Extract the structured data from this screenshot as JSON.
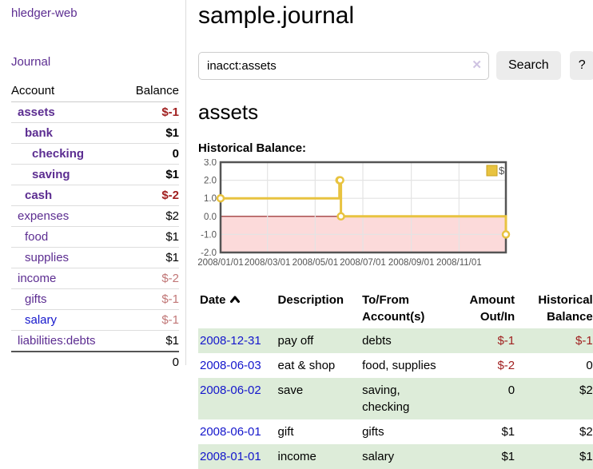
{
  "app": {
    "brand": "hledger-web",
    "nav_journal": "Journal"
  },
  "sidebar": {
    "headers": {
      "account": "Account",
      "balance": "Balance"
    },
    "accounts": [
      {
        "name": "assets",
        "depth": 1,
        "bold": true,
        "balance": "$-1",
        "blue": false
      },
      {
        "name": "bank",
        "depth": 2,
        "bold": true,
        "balance": "$1",
        "blue": false
      },
      {
        "name": "checking",
        "depth": 3,
        "bold": true,
        "balance": "0",
        "blue": false
      },
      {
        "name": "saving",
        "depth": 3,
        "bold": true,
        "balance": "$1",
        "blue": false
      },
      {
        "name": "cash",
        "depth": 2,
        "bold": true,
        "balance": "$-2",
        "blue": false
      },
      {
        "name": "expenses",
        "depth": 1,
        "bold": false,
        "balance": "$2",
        "blue": false
      },
      {
        "name": "food",
        "depth": 2,
        "bold": false,
        "balance": "$1",
        "blue": false
      },
      {
        "name": "supplies",
        "depth": 2,
        "bold": false,
        "balance": "$1",
        "blue": false
      },
      {
        "name": "income",
        "depth": 1,
        "bold": false,
        "balance": "$-2",
        "blue": false
      },
      {
        "name": "gifts",
        "depth": 2,
        "bold": false,
        "balance": "$-1",
        "blue": false
      },
      {
        "name": "salary",
        "depth": 2,
        "bold": false,
        "balance": "$-1",
        "blue": true
      },
      {
        "name": "liabilities:debts",
        "depth": 1,
        "bold": false,
        "balance": "$1",
        "blue": false
      }
    ],
    "total": "0"
  },
  "header": {
    "title": "sample.journal"
  },
  "search": {
    "value": "inacct:assets",
    "button_label": "Search",
    "help_label": "?"
  },
  "page": {
    "heading": "assets",
    "chart_label": "Historical Balance:"
  },
  "chart_data": {
    "type": "line",
    "title": "Historical Balance:",
    "series": [
      {
        "name": "$",
        "color": "#e8c340",
        "step": true,
        "points": [
          [
            "2008-01-01",
            1
          ],
          [
            "2008-06-01",
            2
          ],
          [
            "2008-06-02",
            2
          ],
          [
            "2008-06-03",
            0
          ],
          [
            "2008-12-31",
            -1
          ]
        ]
      }
    ],
    "ylim": [
      -2,
      3
    ],
    "y_ticks": [
      3,
      2,
      1,
      0,
      -1,
      -2
    ],
    "y_tick_labels": [
      "3.0",
      "2.0",
      "1.0",
      "0.0",
      "-1.0",
      "-2.0"
    ],
    "x_range": [
      "2008-01-01",
      "2008-12-31"
    ],
    "x_tick_dates": [
      "2008-01-01",
      "2008-03-01",
      "2008-05-01",
      "2008-07-01",
      "2008-09-01",
      "2008-11-01"
    ],
    "x_tick_labels": [
      "2008/01/01",
      "2008/03/01",
      "2008/05/01",
      "2008/07/01",
      "2008/09/01",
      "2008/11/01"
    ],
    "grid": true,
    "legend_position": "top-right",
    "negative_region_color": "#fcdada",
    "zero_line_color": "#8d1a1a",
    "axis_text_color": "#545454"
  },
  "register": {
    "headers": {
      "date": "Date",
      "description": "Description",
      "to_from": "To/From Account(s)",
      "amount": "Amount Out/In",
      "balance": "Historical Balance"
    },
    "rows": [
      {
        "date": "2008-12-31",
        "description": "pay off",
        "accounts": "debts",
        "amount": "$-1",
        "balance": "$-1"
      },
      {
        "date": "2008-06-03",
        "description": "eat & shop",
        "accounts": "food, supplies",
        "amount": "$-2",
        "balance": "0"
      },
      {
        "date": "2008-06-02",
        "description": "save",
        "accounts": "saving, checking",
        "amount": "0",
        "balance": "$2"
      },
      {
        "date": "2008-06-01",
        "description": "gift",
        "accounts": "gifts",
        "amount": "$1",
        "balance": "$2"
      },
      {
        "date": "2008-01-01",
        "description": "income",
        "accounts": "salary",
        "amount": "$1",
        "balance": "$1"
      }
    ]
  },
  "colors": {
    "accent_purple": "#5c2d91",
    "link_blue": "#1416cc",
    "negative_red": "#a01f1f",
    "negative_faded_red": "#c17676",
    "row_stripe_green": "#ddecd9"
  }
}
